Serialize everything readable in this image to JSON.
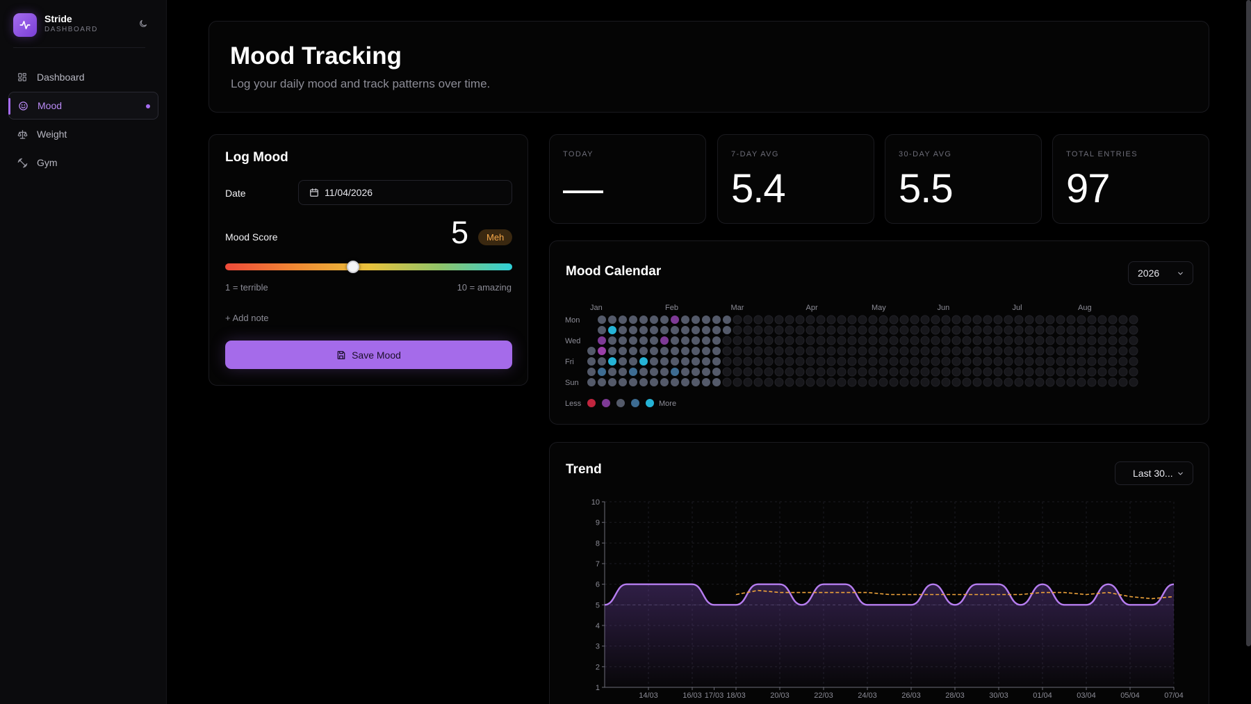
{
  "brand": {
    "name": "Stride",
    "subtitle": "DASHBOARD",
    "logo_icon": "activity-icon",
    "toggle_icon": "moon-icon"
  },
  "nav": [
    {
      "label": "Dashboard",
      "icon": "grid-icon",
      "active": false
    },
    {
      "label": "Mood",
      "icon": "smile-icon",
      "active": true
    },
    {
      "label": "Weight",
      "icon": "scale-icon",
      "active": false
    },
    {
      "label": "Gym",
      "icon": "dumbbell-icon",
      "active": false
    }
  ],
  "header": {
    "title": "Mood Tracking",
    "subtitle": "Log your daily mood and track patterns over time."
  },
  "log": {
    "title": "Log Mood",
    "date_label": "Date",
    "date_value": "11/04/2026",
    "score_label": "Mood Score",
    "score": 5,
    "score_text": "5",
    "badge": "Meh",
    "min_label": "1 = terrible",
    "max_label": "10 = amazing",
    "slider_min": 1,
    "slider_max": 10,
    "add_note": "+ Add note",
    "save_label": "Save Mood"
  },
  "stats": [
    {
      "label": "TODAY",
      "value": "—"
    },
    {
      "label": "7-DAY AVG",
      "value": "5.4"
    },
    {
      "label": "30-DAY AVG",
      "value": "5.5"
    },
    {
      "label": "TOTAL ENTRIES",
      "value": "97"
    }
  ],
  "calendar": {
    "title": "Mood Calendar",
    "year_selected": "2026",
    "months": [
      "Jan",
      "Feb",
      "Mar",
      "Apr",
      "May",
      "Jun",
      "Jul",
      "Aug"
    ],
    "day_labels": [
      "Mon",
      "Wed",
      "Fri",
      "Sun"
    ],
    "legend_less": "Less",
    "legend_more": "More",
    "legend_colors": [
      "#c0253e",
      "#7e3a96",
      "#545a6a",
      "#3d6c92",
      "#25b3d6"
    ],
    "empty_color": "#17171b",
    "default_color": "#545a6a",
    "highlights": [
      {
        "week": 2,
        "day": 1,
        "color": "#25b3d6"
      },
      {
        "week": 2,
        "day": 4,
        "color": "#25b3d6"
      },
      {
        "week": 1,
        "day": 2,
        "color": "#7e3a96"
      },
      {
        "week": 1,
        "day": 3,
        "color": "#9a3fa8"
      },
      {
        "week": 1,
        "day": 5,
        "color": "#3d6c92"
      },
      {
        "week": 5,
        "day": 4,
        "color": "#25b3d6"
      },
      {
        "week": 8,
        "day": 0,
        "color": "#7e3a96"
      },
      {
        "week": 7,
        "day": 2,
        "color": "#7e3a96"
      },
      {
        "week": 8,
        "day": 5,
        "color": "#3d6c92"
      },
      {
        "week": 4,
        "day": 5,
        "color": "#3d6c92"
      }
    ]
  },
  "trend": {
    "title": "Trend",
    "range_selected": "Last 30..."
  },
  "chart_data": {
    "type": "line",
    "x": [
      "12/03",
      "13/03",
      "14/03",
      "15/03",
      "16/03",
      "17/03",
      "18/03",
      "19/03",
      "20/03",
      "21/03",
      "22/03",
      "23/03",
      "24/03",
      "25/03",
      "26/03",
      "27/03",
      "28/03",
      "29/03",
      "30/03",
      "31/03",
      "01/04",
      "02/04",
      "03/04",
      "04/04",
      "05/04",
      "06/04",
      "07/04"
    ],
    "x_tick_labels": [
      "14/03",
      "16/03",
      "17/03",
      "18/03",
      "20/03",
      "22/03",
      "24/03",
      "26/03",
      "28/03",
      "30/03",
      "01/04",
      "03/04",
      "05/04",
      "07/04"
    ],
    "series": [
      {
        "values": [
          5,
          6,
          6,
          6,
          6,
          5,
          5,
          6,
          6,
          5,
          6,
          6,
          5,
          5,
          5,
          6,
          5,
          6,
          6,
          5,
          6,
          5,
          5,
          6,
          5,
          5,
          6
        ],
        "color": "#b67df0"
      },
      {
        "values": [
          null,
          null,
          null,
          null,
          null,
          null,
          5.5,
          5.7,
          5.6,
          5.6,
          5.6,
          5.6,
          5.6,
          5.5,
          5.5,
          5.5,
          5.5,
          5.5,
          5.5,
          5.5,
          5.6,
          5.6,
          5.5,
          5.6,
          5.4,
          5.3,
          5.4
        ],
        "color": "#f0a43a"
      }
    ],
    "ylim": [
      1,
      10
    ],
    "y_ticks": [
      1,
      2,
      3,
      4,
      5,
      6,
      7,
      8,
      9,
      10
    ],
    "reference_line": 5,
    "grid": true,
    "legend": "none"
  }
}
